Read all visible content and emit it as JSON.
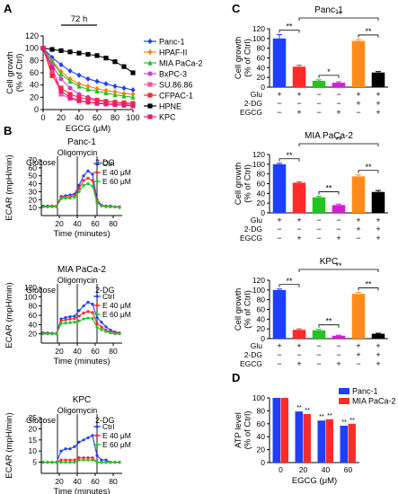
{
  "chart_data": [
    {
      "panel": "A",
      "type": "line",
      "annotation": "72 h",
      "xlabel": "EGCG (μM)",
      "ylabel": "Cell growth\n(% of Ctrl)",
      "xlim": [
        0,
        100
      ],
      "ylim": [
        0,
        120
      ],
      "xticks": [
        0,
        20,
        40,
        60,
        80,
        100
      ],
      "yticks": [
        0,
        20,
        40,
        60,
        80,
        100,
        120
      ],
      "x": [
        0,
        10,
        20,
        30,
        40,
        50,
        60,
        70,
        80,
        90,
        100
      ],
      "legend_position": "right",
      "series": [
        {
          "name": "Panc-1",
          "color": "#1f3fff",
          "marker": "diamond",
          "values": [
            100,
            85,
            73,
            63,
            56,
            50,
            46,
            42,
            38,
            35,
            32
          ]
        },
        {
          "name": "HPAF-II",
          "color": "#ff7f0e",
          "marker": "diamond",
          "values": [
            100,
            80,
            62,
            50,
            42,
            38,
            34,
            31,
            29,
            26,
            25
          ]
        },
        {
          "name": "MIA PaCa-2",
          "color": "#22c422",
          "marker": "triangle",
          "values": [
            100,
            78,
            58,
            46,
            38,
            33,
            30,
            27,
            24,
            22,
            20
          ]
        },
        {
          "name": "BxPC-3",
          "color": "#d040d0",
          "marker": "circle",
          "values": [
            100,
            72,
            50,
            35,
            25,
            20,
            16,
            14,
            12,
            11,
            10
          ]
        },
        {
          "name": "SU.86.86",
          "color": "#ff4fa0",
          "marker": "square",
          "values": [
            100,
            60,
            25,
            18,
            14,
            12,
            11,
            10,
            9,
            9,
            8
          ]
        },
        {
          "name": "CFPAC-1",
          "color": "#ff2b2b",
          "marker": "square",
          "values": [
            100,
            55,
            35,
            25,
            20,
            17,
            15,
            13,
            12,
            11,
            10
          ]
        },
        {
          "name": "HPNE",
          "color": "#000000",
          "marker": "square",
          "values": [
            100,
            98,
            96,
            94,
            92,
            90,
            88,
            84,
            78,
            70,
            60
          ]
        },
        {
          "name": "KPC",
          "color": "#e0207a",
          "marker": "square",
          "values": [
            100,
            68,
            30,
            20,
            15,
            12,
            10,
            9,
            8,
            7,
            6
          ]
        }
      ]
    },
    {
      "panel": "B",
      "type": "line",
      "title": "Panc-1",
      "xlabel": "Time (minutes)",
      "ylabel": "ECAR (mpH/min)",
      "xlim": [
        0,
        90
      ],
      "ylim": [
        0,
        70
      ],
      "xticks": [
        20,
        40,
        60,
        80
      ],
      "yticks": [
        10,
        20,
        30,
        40,
        50,
        60,
        70
      ],
      "events": [
        {
          "label": "Glucose",
          "x": 18
        },
        {
          "label": "Oligomycin",
          "x": 40
        },
        {
          "label": "2-DG",
          "x": 62
        }
      ],
      "x": [
        2,
        7,
        12,
        17,
        22,
        27,
        32,
        37,
        42,
        47,
        52,
        57,
        62,
        67,
        72,
        77,
        82,
        87
      ],
      "series": [
        {
          "name": "Ctrl",
          "color": "#1f3fff",
          "values": [
            12,
            12,
            12,
            12,
            24,
            25,
            26,
            27,
            38,
            50,
            56,
            52,
            20,
            13,
            12,
            12,
            11,
            11
          ]
        },
        {
          "name": "E 40 μM",
          "color": "#ff2b2b",
          "values": [
            11,
            11,
            12,
            12,
            23,
            23,
            24,
            25,
            34,
            44,
            47,
            44,
            18,
            12,
            12,
            11,
            11,
            11
          ]
        },
        {
          "name": "E 60 μM",
          "color": "#22c422",
          "values": [
            11,
            11,
            11,
            11,
            21,
            22,
            22,
            23,
            30,
            38,
            40,
            37,
            16,
            12,
            11,
            11,
            11,
            10
          ]
        }
      ]
    },
    {
      "panel": "B",
      "type": "line",
      "title": "MIA PaCa-2",
      "xlabel": "Time (minutes)",
      "ylabel": "ECAR (mpH/min)",
      "xlim": [
        0,
        90
      ],
      "ylim": [
        0,
        120
      ],
      "xticks": [
        20,
        40,
        60,
        80
      ],
      "yticks": [
        20,
        40,
        60,
        80,
        100,
        120
      ],
      "events": [
        {
          "label": "Glucose",
          "x": 18
        },
        {
          "label": "Oligomycin",
          "x": 40
        },
        {
          "label": "2-DG",
          "x": 62
        }
      ],
      "x": [
        2,
        7,
        12,
        17,
        22,
        27,
        32,
        37,
        42,
        47,
        52,
        57,
        62,
        67,
        72,
        77,
        82,
        87
      ],
      "series": [
        {
          "name": "Ctrl",
          "color": "#1f3fff",
          "values": [
            22,
            22,
            21,
            21,
            52,
            55,
            57,
            58,
            70,
            80,
            88,
            84,
            55,
            45,
            35,
            28,
            24,
            22
          ]
        },
        {
          "name": "E 40 μM",
          "color": "#ff2b2b",
          "values": [
            21,
            21,
            20,
            20,
            48,
            50,
            52,
            53,
            58,
            65,
            68,
            66,
            42,
            35,
            28,
            24,
            22,
            21
          ]
        },
        {
          "name": "E 60 μM",
          "color": "#22c422",
          "values": [
            20,
            20,
            20,
            20,
            42,
            43,
            44,
            45,
            48,
            52,
            54,
            53,
            34,
            29,
            25,
            22,
            20,
            20
          ]
        }
      ]
    },
    {
      "panel": "B",
      "type": "line",
      "title": "KPC",
      "xlabel": "Time (minutes)",
      "ylabel": "ECAR (mpH/min)",
      "xlim": [
        0,
        90
      ],
      "ylim": [
        0,
        25
      ],
      "xticks": [
        20,
        40,
        60,
        80
      ],
      "yticks": [
        5,
        10,
        15,
        20,
        25
      ],
      "events": [
        {
          "label": "Glucose",
          "x": 18
        },
        {
          "label": "Oligomycin",
          "x": 40
        },
        {
          "label": "2-DG",
          "x": 62
        }
      ],
      "x": [
        2,
        7,
        12,
        17,
        22,
        27,
        32,
        37,
        42,
        47,
        52,
        57,
        62,
        67,
        72,
        77,
        82,
        87
      ],
      "series": [
        {
          "name": "Ctrl",
          "color": "#1f3fff",
          "values": [
            5,
            5,
            5,
            5,
            10,
            11,
            11,
            12,
            14,
            15,
            16,
            17,
            8,
            6,
            6,
            5,
            5,
            5
          ]
        },
        {
          "name": "E 40 μM",
          "color": "#ff2b2b",
          "values": [
            5,
            5,
            5,
            5,
            6,
            6,
            6,
            6,
            7,
            7,
            7,
            7,
            5,
            5,
            5,
            5,
            5,
            5
          ]
        },
        {
          "name": "E 60 μM",
          "color": "#22c422",
          "values": [
            5,
            5,
            5,
            5,
            5,
            5,
            5,
            5,
            6,
            6,
            6,
            6,
            5,
            5,
            5,
            5,
            5,
            5
          ]
        }
      ]
    },
    {
      "panel": "C",
      "type": "bar",
      "title": "Panc-1",
      "ylabel": "Cell growth\n(% of Ctrl)",
      "ylim": [
        0,
        120
      ],
      "yticks": [
        0,
        20,
        40,
        60,
        80,
        100,
        120
      ],
      "row_labels": [
        "Glu",
        "2-DG",
        "EGCG"
      ],
      "conditions": [
        [
          "+",
          "+",
          "−",
          "−",
          "+",
          "+"
        ],
        [
          "−",
          "−",
          "−",
          "−",
          "+",
          "+"
        ],
        [
          "−",
          "+",
          "−",
          "+",
          "−",
          "+"
        ]
      ],
      "values": [
        100,
        42,
        13,
        9,
        95,
        30
      ],
      "errors": [
        8,
        3,
        2,
        2,
        3,
        2
      ],
      "colors": [
        "#1f3fff",
        "#ff2b2b",
        "#22c422",
        "#d11fd1",
        "#ff8c1a",
        "#000000"
      ],
      "significance": [
        {
          "from": 0,
          "to": 1,
          "label": "**"
        },
        {
          "from": 2,
          "to": 3,
          "label": "*"
        },
        {
          "from": 4,
          "to": 5,
          "label": "**"
        },
        {
          "from": 1,
          "to": 5,
          "label": "**"
        }
      ]
    },
    {
      "panel": "C",
      "type": "bar",
      "title": "MIA PaCa-2",
      "ylabel": "Cell growth\n(% of Ctrl)",
      "ylim": [
        0,
        120
      ],
      "yticks": [
        0,
        20,
        40,
        60,
        80,
        100,
        120
      ],
      "row_labels": [
        "Glu",
        "2-DG",
        "EGCG"
      ],
      "conditions": [
        [
          "+",
          "+",
          "−",
          "−",
          "+",
          "+"
        ],
        [
          "−",
          "−",
          "−",
          "−",
          "+",
          "+"
        ],
        [
          "−",
          "+",
          "−",
          "+",
          "−",
          "+"
        ]
      ],
      "values": [
        100,
        62,
        32,
        16,
        75,
        43
      ],
      "errors": [
        2,
        2,
        2,
        2,
        3,
        3
      ],
      "colors": [
        "#1f3fff",
        "#ff2b2b",
        "#22c422",
        "#d11fd1",
        "#ff8c1a",
        "#000000"
      ],
      "significance": [
        {
          "from": 0,
          "to": 1,
          "label": "**"
        },
        {
          "from": 2,
          "to": 3,
          "label": "**"
        },
        {
          "from": 4,
          "to": 5,
          "label": "**"
        },
        {
          "from": 1,
          "to": 5,
          "label": "**"
        }
      ]
    },
    {
      "panel": "C",
      "type": "bar",
      "title": "KPC",
      "ylabel": "Cell growth\n(% of Ctrl)",
      "ylim": [
        0,
        120
      ],
      "yticks": [
        0,
        20,
        40,
        60,
        80,
        100,
        120
      ],
      "row_labels": [
        "Glu",
        "2-DG",
        "EGCG"
      ],
      "conditions": [
        [
          "+",
          "+",
          "−",
          "−",
          "+",
          "+"
        ],
        [
          "−",
          "−",
          "−",
          "−",
          "+",
          "+"
        ],
        [
          "−",
          "+",
          "−",
          "+",
          "−",
          "+"
        ]
      ],
      "values": [
        100,
        18,
        17,
        6,
        92,
        10
      ],
      "errors": [
        2,
        2,
        2,
        1,
        3,
        1
      ],
      "colors": [
        "#1f3fff",
        "#ff2b2b",
        "#22c422",
        "#d11fd1",
        "#ff8c1a",
        "#000000"
      ],
      "significance": [
        {
          "from": 0,
          "to": 1,
          "label": "**"
        },
        {
          "from": 2,
          "to": 3,
          "label": "**"
        },
        {
          "from": 4,
          "to": 5,
          "label": "**"
        },
        {
          "from": 1,
          "to": 5,
          "label": "**"
        }
      ]
    },
    {
      "panel": "D",
      "type": "bar",
      "xlabel": "EGCG (μM)",
      "ylabel": "ATP level\n(% of Ctrl)",
      "ylim": [
        0,
        100
      ],
      "yticks": [
        0,
        20,
        40,
        60,
        80,
        100
      ],
      "categories": [
        "0",
        "20",
        "40",
        "60"
      ],
      "legend_position": "top-right",
      "series": [
        {
          "name": "Panc-1",
          "color": "#1f3fff",
          "values": [
            100,
            79,
            65,
            57
          ],
          "sig": [
            "",
            "**",
            "**",
            "**"
          ]
        },
        {
          "name": "MIA PaCa-2",
          "color": "#ff2b2b",
          "values": [
            100,
            75,
            67,
            60
          ],
          "sig": [
            "",
            "**",
            "**",
            "**"
          ]
        }
      ]
    }
  ],
  "labels": {
    "a": "A",
    "b": "B",
    "c": "C",
    "d": "D"
  }
}
